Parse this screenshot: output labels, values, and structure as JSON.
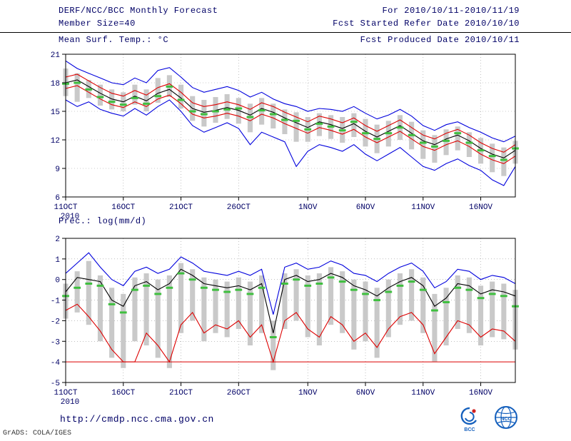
{
  "header": {
    "title": "DERF/NCC/BCC Monthly Forecast",
    "member_size": "Member Size=40",
    "variable": "Mean Surf. Temp.: °C",
    "forecast_range": "For 2010/10/11-2010/11/19",
    "refer_date": "Fcst Started Refer Date 2010/10/10",
    "produced_date": "Fcst Produced Date 2010/10/11"
  },
  "panel2_label": "Prec.: log(mm/d)",
  "footer": {
    "url": "http://cmdp.ncc.cma.gov.cn",
    "credit": "GrADS: COLA/IGES",
    "logo1_label": "BCC",
    "logo2_label": "NCC"
  },
  "colors": {
    "text": "#000066",
    "blue_line": "#0000dd",
    "red_line": "#dd0000",
    "black_line": "#000000",
    "green_dash": "#3fbf3f",
    "bar": "#c9c9c9"
  },
  "chart_data": [
    {
      "type": "line",
      "title": "Mean Surf. Temp.: °C",
      "ylabel": "°C",
      "ylim": [
        6,
        21
      ],
      "y_ticks": [
        6,
        9,
        12,
        15,
        18,
        21
      ],
      "n_points": 40,
      "year_label": "2010",
      "x_ticks": [
        {
          "label": "11OCT",
          "i": 0
        },
        {
          "label": "16OCT",
          "i": 5
        },
        {
          "label": "21OCT",
          "i": 10
        },
        {
          "label": "26OCT",
          "i": 15
        },
        {
          "label": "1NOV",
          "i": 21
        },
        {
          "label": "6NOV",
          "i": 26
        },
        {
          "label": "11NOV",
          "i": 31
        },
        {
          "label": "16NOV",
          "i": 36
        }
      ],
      "bars": {
        "color": "#c9c9c9",
        "top": [
          19.5,
          19.0,
          18.3,
          17.8,
          17.3,
          17.0,
          17.8,
          17.3,
          18.5,
          18.8,
          17.8,
          16.6,
          16.2,
          16.5,
          16.8,
          16.4,
          15.8,
          16.4,
          15.8,
          15.2,
          14.9,
          14.4,
          14.8,
          14.6,
          14.4,
          14.8,
          14.2,
          13.6,
          14.0,
          14.6,
          13.9,
          13.0,
          12.5,
          13.1,
          13.4,
          12.8,
          12.2,
          11.6,
          11.2,
          11.9
        ],
        "bottom": [
          16.6,
          16.0,
          16.4,
          15.6,
          15.2,
          15.0,
          15.7,
          15.0,
          15.9,
          16.5,
          15.3,
          14.0,
          13.4,
          13.8,
          14.2,
          13.7,
          12.8,
          13.6,
          13.2,
          12.6,
          11.8,
          11.8,
          12.4,
          12.1,
          11.7,
          12.3,
          11.3,
          10.6,
          11.3,
          12.0,
          11.0,
          10.0,
          9.6,
          10.4,
          10.9,
          10.2,
          9.5,
          8.6,
          8.2,
          9.5
        ]
      },
      "series": [
        {
          "name": "ensemble-max",
          "color": "#0000dd",
          "style": "line",
          "values": [
            20.3,
            19.5,
            19.0,
            18.5,
            18.0,
            17.8,
            18.5,
            18.0,
            19.3,
            19.6,
            18.6,
            17.5,
            17.0,
            17.3,
            17.6,
            17.2,
            16.5,
            17.0,
            16.3,
            15.8,
            15.5,
            15.0,
            15.3,
            15.2,
            15.0,
            15.5,
            14.8,
            14.2,
            14.6,
            15.2,
            14.5,
            13.5,
            13.0,
            13.6,
            13.9,
            13.3,
            12.8,
            12.2,
            11.8,
            12.4
          ]
        },
        {
          "name": "ensemble-min",
          "color": "#0000dd",
          "style": "line",
          "values": [
            16.2,
            15.5,
            16.0,
            15.2,
            14.8,
            14.5,
            15.3,
            14.6,
            15.5,
            16.2,
            15.0,
            13.5,
            12.8,
            13.3,
            13.8,
            13.2,
            11.5,
            12.8,
            12.3,
            11.8,
            9.2,
            10.8,
            11.5,
            11.2,
            10.8,
            11.5,
            10.5,
            9.8,
            10.5,
            11.2,
            10.2,
            9.2,
            8.8,
            9.5,
            10.0,
            9.3,
            8.8,
            7.8,
            7.2,
            9.2
          ]
        },
        {
          "name": "mean-plus-spread",
          "color": "#dd0000",
          "style": "line",
          "values": [
            18.6,
            18.9,
            18.2,
            17.5,
            16.9,
            16.6,
            17.2,
            16.7,
            17.5,
            17.9,
            17.0,
            15.9,
            15.5,
            15.7,
            16.0,
            15.7,
            15.2,
            15.9,
            15.5,
            14.9,
            14.4,
            13.9,
            14.5,
            14.2,
            13.8,
            14.3,
            13.5,
            12.9,
            13.5,
            14.1,
            13.3,
            12.5,
            12.1,
            12.7,
            13.1,
            12.5,
            11.7,
            11.1,
            10.7,
            11.5
          ]
        },
        {
          "name": "mean-minus-spread",
          "color": "#dd0000",
          "style": "line",
          "values": [
            17.4,
            17.7,
            17.0,
            16.3,
            15.7,
            15.4,
            16.0,
            15.5,
            16.3,
            16.7,
            15.8,
            14.7,
            14.3,
            14.5,
            14.8,
            14.5,
            14.0,
            14.7,
            14.3,
            13.7,
            13.2,
            12.7,
            13.3,
            13.0,
            12.6,
            13.1,
            12.3,
            11.7,
            12.3,
            12.9,
            12.1,
            11.3,
            10.9,
            11.5,
            11.9,
            11.3,
            10.5,
            9.9,
            9.5,
            10.3
          ]
        },
        {
          "name": "ensemble-mean",
          "color": "#000000",
          "style": "line",
          "values": [
            18.0,
            18.3,
            17.6,
            16.9,
            16.3,
            16.0,
            16.6,
            16.1,
            16.9,
            17.3,
            16.4,
            15.3,
            14.9,
            15.1,
            15.4,
            15.1,
            14.6,
            15.3,
            14.9,
            14.3,
            13.8,
            13.3,
            13.9,
            13.6,
            13.2,
            13.7,
            12.9,
            12.3,
            12.9,
            13.5,
            12.7,
            11.9,
            11.5,
            12.1,
            12.5,
            11.9,
            11.1,
            10.5,
            10.1,
            10.9
          ]
        },
        {
          "name": "control-run",
          "color": "#3fbf3f",
          "style": "dashes",
          "values": [
            17.9,
            18.0,
            17.3,
            16.5,
            16.0,
            15.7,
            16.4,
            15.8,
            16.6,
            17.6,
            16.2,
            15.0,
            14.7,
            15.0,
            15.2,
            15.3,
            14.4,
            15.1,
            14.7,
            14.1,
            14.0,
            13.1,
            13.7,
            13.4,
            13.0,
            13.9,
            12.7,
            12.1,
            12.7,
            13.3,
            12.5,
            11.7,
            11.3,
            11.9,
            12.7,
            11.7,
            10.9,
            10.3,
            9.9,
            11.1
          ]
        }
      ]
    },
    {
      "type": "line",
      "title": "Prec.: log(mm/d)",
      "ylabel": "log(mm/d)",
      "ylim": [
        -5,
        2
      ],
      "y_ticks": [
        -5,
        -4,
        -3,
        -2,
        -1,
        0,
        1,
        2
      ],
      "n_points": 40,
      "year_label": "2010",
      "x_ticks": [
        {
          "label": "11OCT",
          "i": 0
        },
        {
          "label": "16OCT",
          "i": 5
        },
        {
          "label": "21OCT",
          "i": 10
        },
        {
          "label": "26OCT",
          "i": 15
        },
        {
          "label": "1NOV",
          "i": 21
        },
        {
          "label": "6NOV",
          "i": 26
        },
        {
          "label": "11NOV",
          "i": 31
        },
        {
          "label": "16NOV",
          "i": 36
        }
      ],
      "floor_line": {
        "y": -4,
        "color": "#dd0000"
      },
      "bars": {
        "color": "#c9c9c9",
        "top": [
          -0.2,
          0.4,
          0.9,
          0.2,
          -0.4,
          -0.7,
          0.1,
          0.3,
          0.0,
          0.2,
          0.8,
          0.5,
          0.1,
          0.0,
          -0.1,
          0.1,
          -0.1,
          0.2,
          -2.0,
          0.3,
          0.5,
          0.2,
          0.3,
          0.6,
          0.4,
          0.0,
          -0.1,
          -0.4,
          0.0,
          0.3,
          0.5,
          0.1,
          -0.7,
          -0.4,
          0.2,
          0.1,
          -0.3,
          -0.1,
          -0.2,
          -0.5
        ],
        "bottom": [
          -1.9,
          -1.6,
          -2.2,
          -3.0,
          -3.8,
          -4.3,
          -3.0,
          -3.2,
          -3.8,
          -4.3,
          -2.6,
          -2.0,
          -3.0,
          -2.6,
          -2.8,
          -2.4,
          -3.2,
          -2.6,
          -4.4,
          -2.4,
          -2.0,
          -2.8,
          -3.2,
          -2.2,
          -2.6,
          -3.4,
          -3.0,
          -3.8,
          -2.8,
          -2.2,
          -2.0,
          -2.6,
          -4.0,
          -3.2,
          -2.4,
          -2.6,
          -3.2,
          -2.8,
          -2.9,
          -3.4
        ]
      },
      "series": [
        {
          "name": "ensemble-max",
          "color": "#0000dd",
          "style": "line",
          "values": [
            0.3,
            0.8,
            1.3,
            0.6,
            0.0,
            -0.3,
            0.4,
            0.6,
            0.3,
            0.5,
            1.1,
            0.8,
            0.4,
            0.3,
            0.2,
            0.4,
            0.2,
            0.5,
            -1.7,
            0.6,
            0.8,
            0.5,
            0.6,
            0.9,
            0.7,
            0.3,
            0.2,
            -0.1,
            0.3,
            0.6,
            0.8,
            0.4,
            -0.4,
            -0.1,
            0.5,
            0.4,
            0.0,
            0.2,
            0.1,
            -0.2
          ]
        },
        {
          "name": "ensemble-min",
          "color": "#dd0000",
          "style": "line",
          "values": [
            -1.5,
            -1.2,
            -1.8,
            -2.5,
            -3.4,
            -4.0,
            -4.0,
            -2.6,
            -3.2,
            -4.0,
            -2.2,
            -1.6,
            -2.6,
            -2.2,
            -2.4,
            -2.0,
            -2.8,
            -2.2,
            -4.0,
            -2.0,
            -1.6,
            -2.4,
            -2.8,
            -1.8,
            -2.2,
            -3.0,
            -2.6,
            -3.3,
            -2.4,
            -1.8,
            -1.6,
            -2.2,
            -3.6,
            -2.8,
            -2.0,
            -2.2,
            -2.8,
            -2.4,
            -2.5,
            -3.0
          ]
        },
        {
          "name": "ensemble-mean",
          "color": "#000000",
          "style": "line",
          "values": [
            -0.6,
            0.1,
            0.0,
            -0.1,
            -1.0,
            -1.3,
            -0.3,
            -0.1,
            -0.5,
            -0.2,
            0.5,
            0.2,
            -0.2,
            -0.3,
            -0.4,
            -0.3,
            -0.5,
            -0.2,
            -2.6,
            0.0,
            0.2,
            -0.1,
            0.0,
            0.3,
            0.1,
            -0.3,
            -0.5,
            -0.8,
            -0.4,
            -0.1,
            0.1,
            -0.3,
            -1.3,
            -0.9,
            -0.2,
            -0.3,
            -0.7,
            -0.5,
            -0.6,
            -0.8
          ]
        },
        {
          "name": "control-run",
          "color": "#3fbf3f",
          "style": "dashes",
          "values": [
            -0.8,
            -0.4,
            -0.2,
            -0.3,
            -1.2,
            -1.6,
            -0.5,
            -0.3,
            -0.7,
            -0.4,
            0.3,
            0.0,
            -0.4,
            -0.5,
            -0.6,
            -0.5,
            -0.7,
            -0.4,
            -2.8,
            -0.2,
            0.0,
            -0.3,
            -0.2,
            0.1,
            -0.1,
            -0.5,
            -0.7,
            -1.0,
            -0.6,
            -0.3,
            -0.1,
            -0.5,
            -1.5,
            -1.1,
            -0.4,
            -0.5,
            -0.9,
            -0.7,
            -0.8,
            -1.3
          ]
        }
      ]
    }
  ]
}
